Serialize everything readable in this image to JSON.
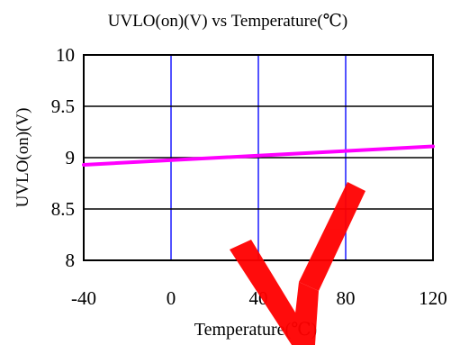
{
  "chart_data": {
    "type": "line",
    "title": "UVLO(on)(V) vs Temperature(℃)",
    "xlabel": "Temperature(℃)",
    "ylabel": "UVLO(on)(V)",
    "xlim": [
      -40,
      120
    ],
    "ylim": [
      8,
      10
    ],
    "xticks": [
      -40,
      0,
      40,
      80,
      120
    ],
    "yticks": [
      8,
      8.5,
      9,
      9.5,
      10
    ],
    "xtick_labels": [
      "-40",
      "0",
      "40",
      "80",
      "120"
    ],
    "ytick_labels": [
      "8",
      "8.5",
      "9",
      "9.5",
      "10"
    ],
    "grid": true,
    "grid_vertical_color": "#1a1aff",
    "grid_horizontal_color": "#000000",
    "series": [
      {
        "color": "#ff00ff",
        "x": [
          -40,
          120
        ],
        "y": [
          8.93,
          9.11
        ]
      }
    ],
    "watermark": "Y",
    "watermark_color": "#ff0000"
  }
}
